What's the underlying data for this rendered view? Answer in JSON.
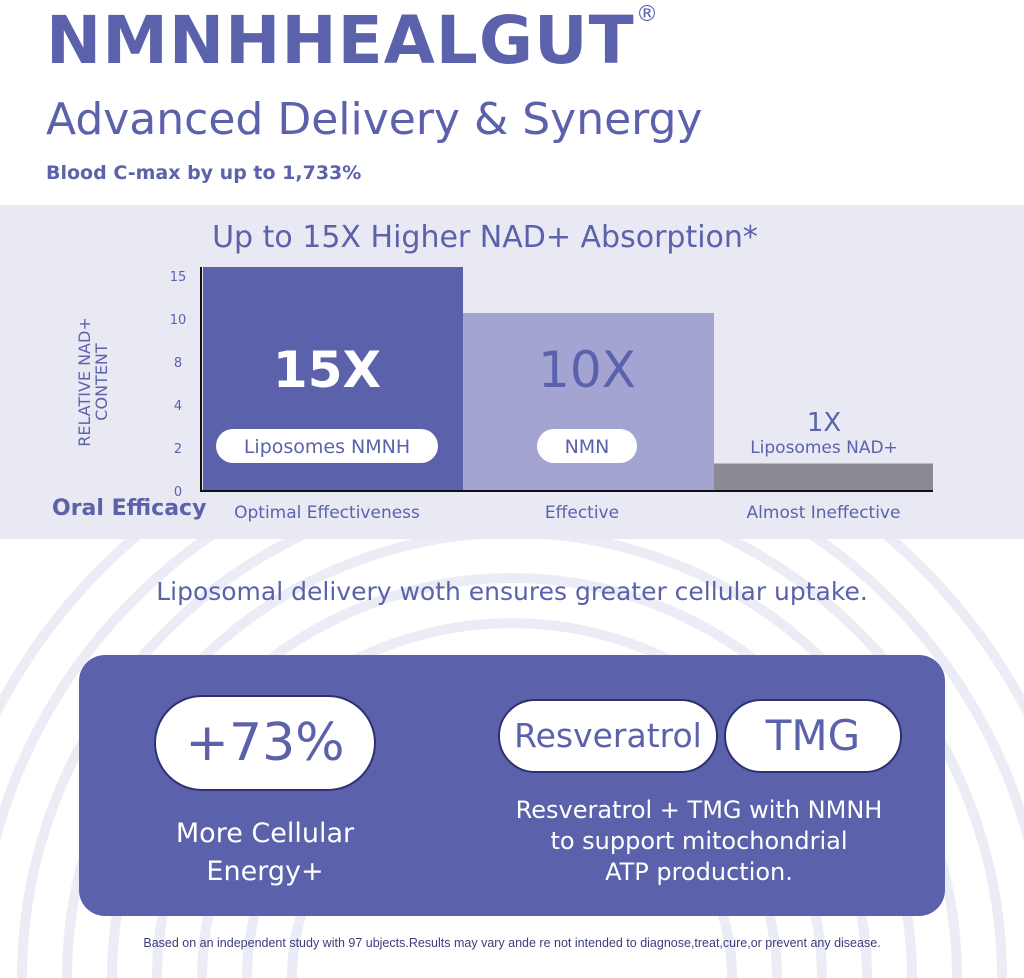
{
  "header": {
    "brand": "NMNHHEALGUT",
    "registered_mark": "®",
    "subtitle": "Advanced Delivery & Synergy",
    "claim": "Blood C-max by up to 1,733%"
  },
  "chart_data": {
    "type": "bar",
    "title": "Up to 15X Higher NAD+ Absorption*",
    "ylabel_line1": "RELATIVE NAD+",
    "ylabel_line2": "CONTENT",
    "xlabel": "Oral Efficacy",
    "yticks": [
      0,
      2,
      4,
      8,
      10,
      15
    ],
    "ylim": [
      0,
      15
    ],
    "grid": false,
    "categories": [
      "Optimal Effectiveness",
      "Effective",
      "Almost Ineffective"
    ],
    "values": [
      15,
      10,
      1
    ],
    "value_labels": [
      "15X",
      "10X",
      "1X"
    ],
    "bar_names": [
      "Liposomes NMNH",
      "NMN",
      "Liposomes NAD+"
    ],
    "colors": [
      "#5b62ab",
      "#a3a4d2",
      "#8a8a94"
    ]
  },
  "tagline": "Liposomal delivery woth ensures greater cellular uptake.",
  "card": {
    "stat": "+73%",
    "stat_caption_line1": "More Cellular",
    "stat_caption_line2": "Energy+",
    "pill_1": "Resveratrol",
    "pill_2": "TMG",
    "desc_line1": "Resveratrol + TMG  with NMNH",
    "desc_line2": "to support  mitochondrial",
    "desc_line3": "ATP production."
  },
  "footnote": "Based on an independent study with 97 ubjects.Results may vary ande re not intended to diagnose,treat,cure,or prevent any disease.",
  "colors": {
    "primary": "#5b62ab",
    "band": "#e9e9f4"
  }
}
